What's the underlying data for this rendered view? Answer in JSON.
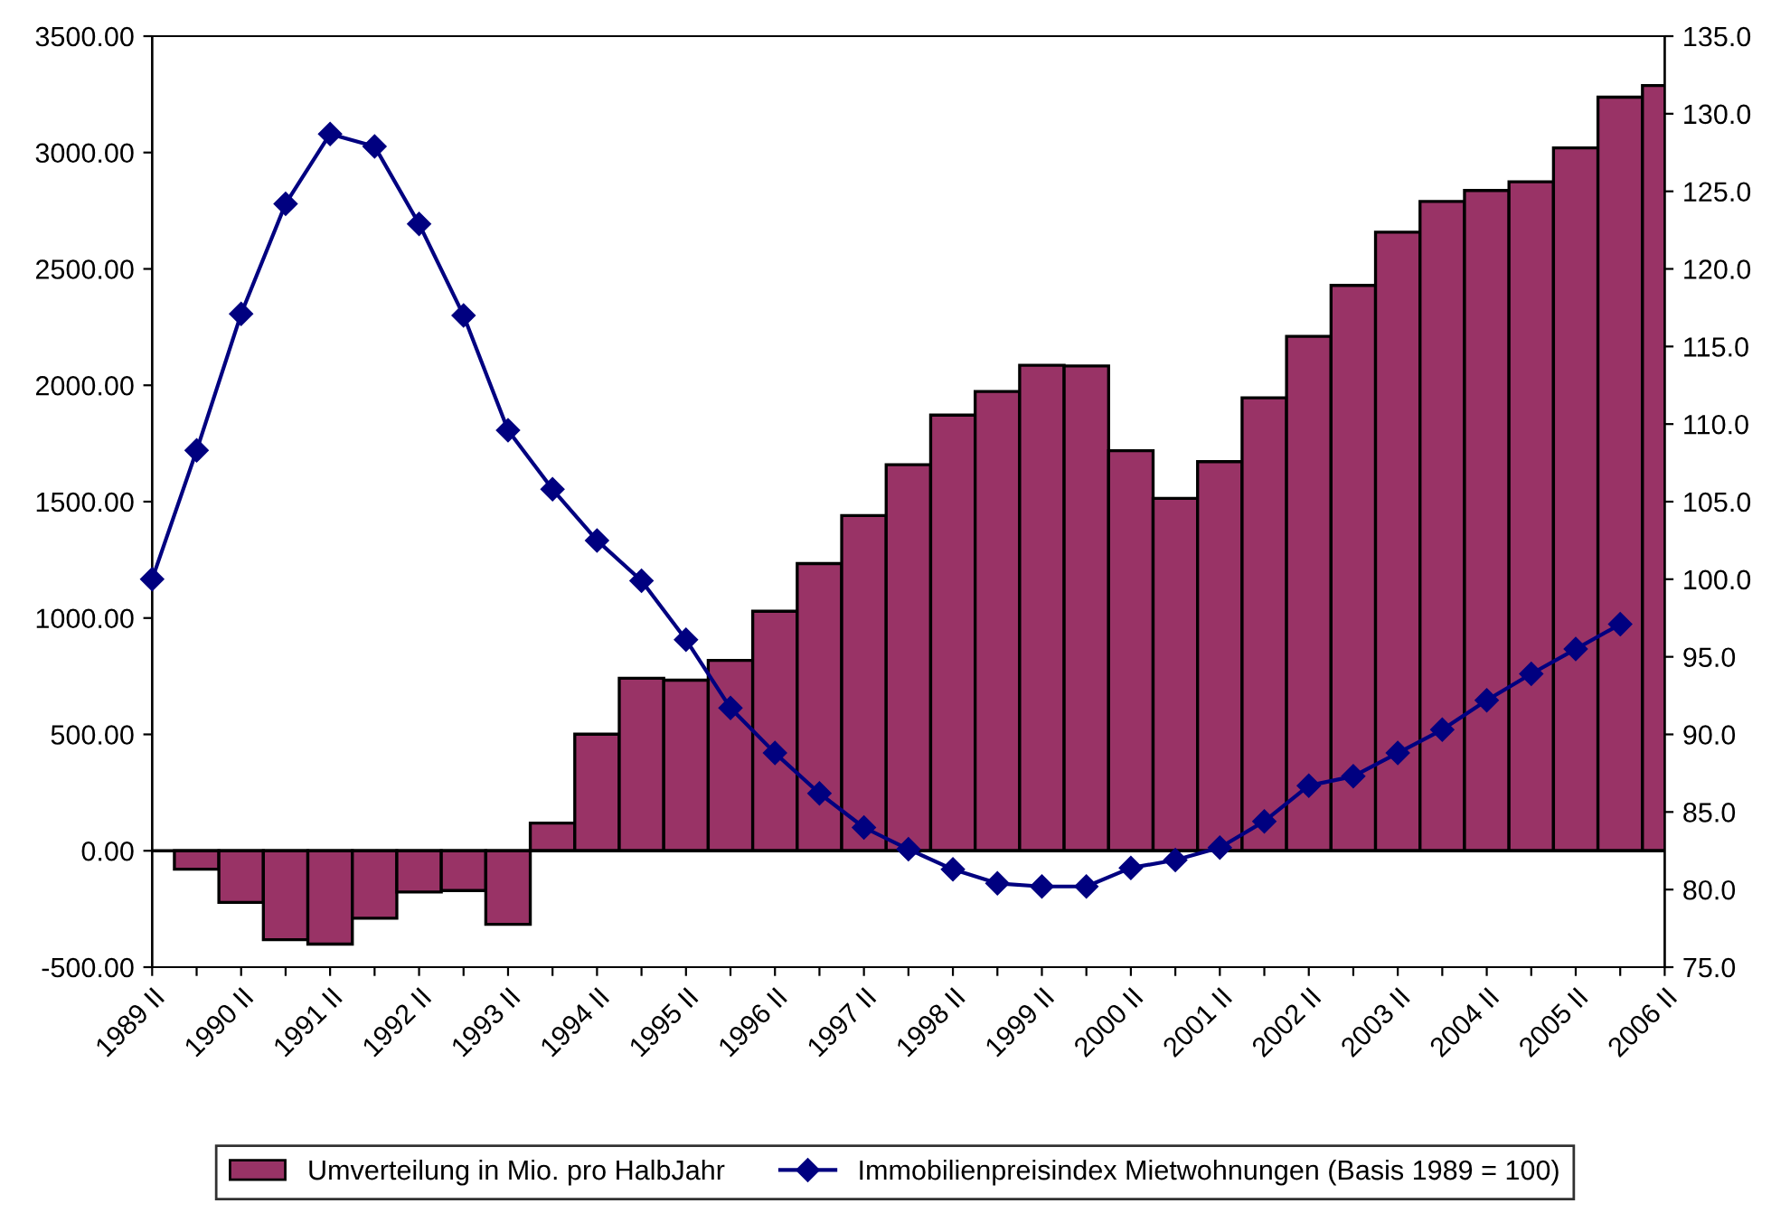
{
  "chart_data": {
    "type": "bar",
    "categories": [
      "1989 II",
      null,
      "1990 II",
      null,
      "1991 II",
      null,
      "1992 II",
      null,
      "1993 II",
      null,
      "1994 II",
      null,
      "1995 II",
      null,
      "1996 II",
      null,
      "1997 II",
      null,
      "1998 II",
      null,
      "1999 II",
      null,
      "2000 II",
      null,
      "2001 II",
      null,
      "2002 II",
      null,
      "2003 II",
      null,
      "2004 II",
      null,
      "2005 II",
      null,
      "2006 II"
    ],
    "series": [
      {
        "name": "Umverteilung in Mio. pro HalbJahr",
        "color": "#993366",
        "values": [
          null,
          -79,
          -222,
          -382,
          -401,
          -290,
          -177,
          -171,
          -316,
          119,
          501,
          741,
          733,
          818,
          1029,
          1234,
          1440,
          1659,
          1872,
          1973,
          2086,
          2083,
          1719,
          1514,
          1672,
          1946,
          2210,
          2429,
          2658,
          2790,
          2837,
          2874,
          3020,
          3238,
          3288
        ]
      },
      {
        "name": "Immobilienpreisindex Mietwohnungen (Basis 1989 = 100)",
        "type": "line",
        "axis": "y2",
        "color": "#000080",
        "marker": "diamond",
        "values": [
          100.0,
          108.3,
          117.1,
          124.2,
          128.7,
          127.9,
          122.9,
          117.0,
          109.6,
          105.8,
          102.5,
          99.9,
          96.1,
          91.7,
          88.8,
          86.2,
          84.0,
          82.6,
          81.3,
          80.4,
          80.2,
          80.2,
          81.4,
          81.9,
          82.7,
          84.4,
          86.7,
          87.3,
          88.8,
          90.3,
          92.2,
          93.9,
          95.5,
          97.1,
          null
        ]
      }
    ],
    "ylim": [
      -500,
      3500
    ],
    "yticks": [
      {
        "value": -500,
        "label": "-500.00"
      },
      {
        "value": 0,
        "label": "0.00"
      },
      {
        "value": 500,
        "label": "500.00"
      },
      {
        "value": 1000,
        "label": "1000.00"
      },
      {
        "value": 1500,
        "label": "1500.00"
      },
      {
        "value": 2000,
        "label": "2000.00"
      },
      {
        "value": 2500,
        "label": "2500.00"
      },
      {
        "value": 3000,
        "label": "3000.00"
      },
      {
        "value": 3500,
        "label": "3500.00"
      }
    ],
    "y2lim": [
      75,
      135
    ],
    "y2ticks": [
      {
        "value": 75,
        "label": "75.0"
      },
      {
        "value": 80,
        "label": "80.0"
      },
      {
        "value": 85,
        "label": "85.0"
      },
      {
        "value": 90,
        "label": "90.0"
      },
      {
        "value": 95,
        "label": "95.0"
      },
      {
        "value": 100,
        "label": "100.0"
      },
      {
        "value": 105,
        "label": "105.0"
      },
      {
        "value": 110,
        "label": "110.0"
      },
      {
        "value": 115,
        "label": "115.0"
      },
      {
        "value": 120,
        "label": "120.0"
      },
      {
        "value": 125,
        "label": "125.0"
      },
      {
        "value": 130,
        "label": "130.0"
      },
      {
        "value": 135,
        "label": "135.0"
      }
    ],
    "legend": "bottom"
  }
}
